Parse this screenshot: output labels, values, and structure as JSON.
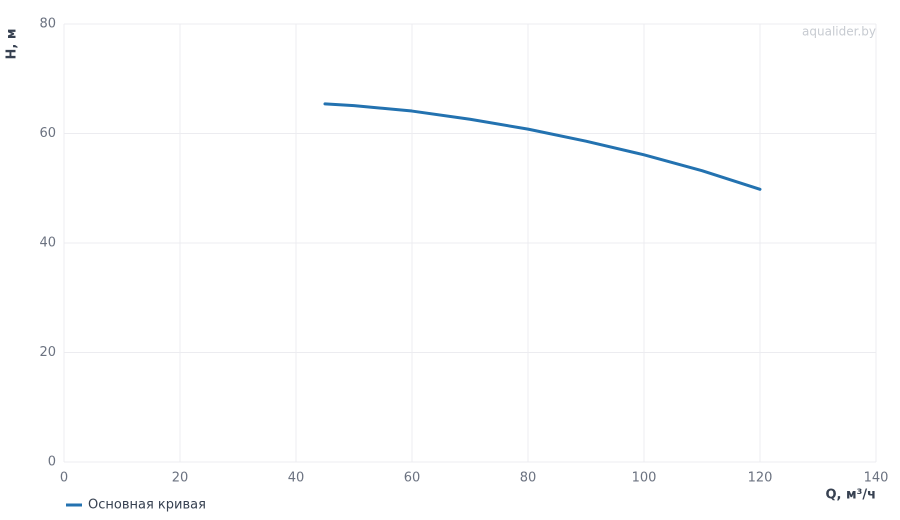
{
  "chart_data": {
    "type": "line",
    "x_label": "Q, м³/ч",
    "y_label": "H, м",
    "watermark": "aqualider.by",
    "x": [
      45,
      50,
      60,
      70,
      80,
      90,
      100,
      110,
      120
    ],
    "series": [
      {
        "name": "Основная кривая",
        "color": "#2372b0",
        "values": [
          65.4,
          65.1,
          64.1,
          62.6,
          60.8,
          58.6,
          56.1,
          53.2,
          49.8
        ]
      }
    ],
    "xlim": [
      0,
      140
    ],
    "xticks": [
      0,
      20,
      40,
      60,
      80,
      100,
      120,
      140
    ],
    "ylim": [
      0,
      80
    ],
    "yticks": [
      0,
      20,
      40,
      60,
      80
    ],
    "grid": true
  }
}
